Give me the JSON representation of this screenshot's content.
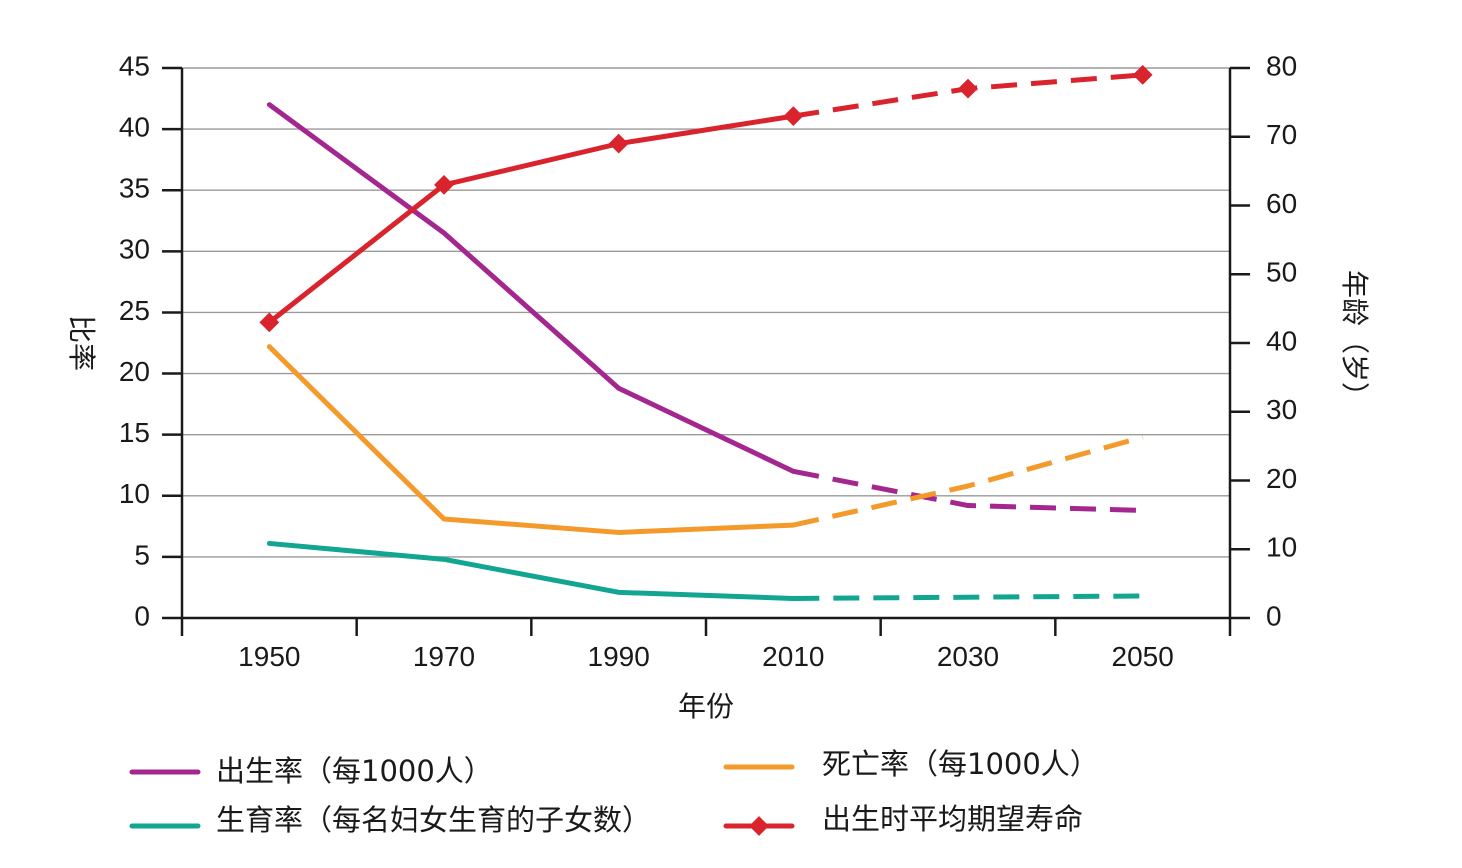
{
  "chart_data": {
    "type": "line",
    "xlabel": "年份",
    "ylabel_left": "比率",
    "ylabel_right": "年龄（岁）",
    "x_ticks": [
      1950,
      1970,
      1990,
      2010,
      2030,
      2050
    ],
    "x_range": [
      1940,
      2060
    ],
    "y_left_ticks": [
      0,
      5,
      10,
      15,
      20,
      25,
      30,
      35,
      40,
      45
    ],
    "y_left_range": [
      0,
      45
    ],
    "y_right_ticks": [
      0,
      10,
      20,
      30,
      40,
      50,
      60,
      70,
      80
    ],
    "y_right_range": [
      0,
      80
    ],
    "grid": true,
    "legend_position": "bottom",
    "projection_start": 2010,
    "series": [
      {
        "name": "出生率（每1000人）",
        "axis": "left",
        "color": "#A4278F",
        "marker": "none",
        "x": [
          1950,
          1970,
          1990,
          2010,
          2030,
          2050
        ],
        "values": [
          42,
          31.5,
          18.8,
          12,
          9.2,
          8.8
        ]
      },
      {
        "name": "死亡率（每1000人）",
        "axis": "left",
        "color": "#F39A2B",
        "marker": "none",
        "x": [
          1950,
          1970,
          1990,
          2010,
          2030,
          2050
        ],
        "values": [
          22.2,
          8.1,
          7,
          7.6,
          10.8,
          14.8
        ]
      },
      {
        "name": "生育率（每名妇女生育的子女数）",
        "axis": "left",
        "color": "#12A592",
        "marker": "none",
        "x": [
          1950,
          1970,
          1990,
          2010,
          2030,
          2050
        ],
        "values": [
          6.1,
          4.8,
          2.1,
          1.6,
          1.7,
          1.8
        ]
      },
      {
        "name": "出生时平均期望寿命",
        "axis": "right",
        "color": "#D9232D",
        "marker": "diamond",
        "x": [
          1950,
          1970,
          1990,
          2010,
          2030,
          2050
        ],
        "values": [
          43,
          63,
          69,
          73,
          77,
          79
        ]
      }
    ]
  }
}
